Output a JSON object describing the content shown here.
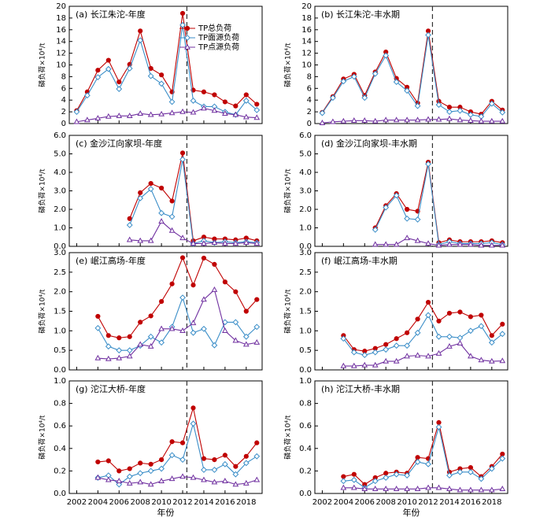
{
  "chart_data": [
    {
      "type": "line",
      "title": "(a) 长江朱沱-年度",
      "ylabel": "磷负荷×10⁴/t",
      "x": [
        2002,
        2003,
        2004,
        2005,
        2006,
        2007,
        2008,
        2009,
        2010,
        2011,
        2012,
        2013,
        2014,
        2015,
        2016,
        2017,
        2018,
        2019
      ],
      "series": [
        {
          "name": "TP总负荷",
          "color": "#c00000",
          "marker": "circle",
          "values": [
            2.2,
            5.4,
            9.1,
            10.8,
            7.1,
            10.1,
            15.8,
            9.4,
            8.3,
            5.4,
            18.8,
            5.7,
            5.4,
            4.9,
            3.7,
            3.0,
            4.9,
            3.3
          ]
        },
        {
          "name": "TP面源负荷",
          "color": "#3b8ec8",
          "marker": "diamond",
          "values": [
            2.0,
            4.8,
            7.9,
            9.3,
            5.9,
            9.4,
            14.2,
            8.1,
            6.8,
            3.7,
            16.8,
            3.9,
            2.9,
            2.9,
            2.0,
            1.5,
            3.9,
            2.3
          ]
        },
        {
          "name": "TP点源负荷",
          "color": "#7030a0",
          "marker": "triangle",
          "values": [
            0.3,
            0.6,
            0.9,
            1.2,
            1.3,
            1.3,
            1.7,
            1.5,
            1.6,
            1.8,
            2.0,
            1.9,
            2.6,
            2.2,
            1.7,
            1.5,
            1.1,
            1.0
          ]
        }
      ],
      "legend": "upper right",
      "divider_x": 2012.4,
      "xlim": [
        2001.3,
        2019.5
      ],
      "xticks": [
        2002,
        2004,
        2006,
        2008,
        2010,
        2012,
        2014,
        2016,
        2018
      ],
      "ylim": [
        0,
        20
      ],
      "yticks": [
        0,
        2,
        4,
        6,
        8,
        10,
        12,
        14,
        16,
        18,
        20
      ]
    },
    {
      "type": "line",
      "title": "(b) 长江朱沱-丰水期",
      "ylabel": "磷负荷×10⁴/t",
      "x": [
        2002,
        2003,
        2004,
        2005,
        2006,
        2007,
        2008,
        2009,
        2010,
        2011,
        2012,
        2013,
        2014,
        2015,
        2016,
        2017,
        2018,
        2019
      ],
      "series": [
        {
          "color": "#c00000",
          "marker": "circle",
          "values": [
            1.9,
            4.6,
            7.6,
            8.4,
            4.8,
            8.8,
            12.2,
            7.7,
            6.2,
            3.5,
            15.8,
            3.8,
            2.8,
            2.8,
            2.0,
            1.6,
            3.8,
            2.3
          ]
        },
        {
          "color": "#3b8ec8",
          "marker": "diamond",
          "values": [
            1.8,
            4.4,
            7.2,
            8.0,
            4.4,
            8.5,
            11.6,
            7.1,
            5.6,
            3.0,
            15.1,
            3.2,
            2.0,
            2.2,
            1.5,
            1.2,
            3.4,
            1.9
          ]
        },
        {
          "color": "#7030a0",
          "marker": "triangle",
          "values": [
            0.1,
            0.3,
            0.4,
            0.5,
            0.5,
            0.4,
            0.6,
            0.6,
            0.6,
            0.6,
            0.7,
            0.7,
            0.8,
            0.6,
            0.5,
            0.4,
            0.4,
            0.4
          ]
        }
      ],
      "divider_x": 2012.4,
      "xlim": [
        2001.3,
        2019.5
      ],
      "xticks": [
        2002,
        2004,
        2006,
        2008,
        2010,
        2012,
        2014,
        2016,
        2018
      ],
      "ylim": [
        0,
        20
      ],
      "yticks": [
        0,
        2,
        4,
        6,
        8,
        10,
        12,
        14,
        16,
        18,
        20
      ]
    },
    {
      "type": "line",
      "title": "(c) 金沙江向家坝-年度",
      "ylabel": "磷负荷×10⁴/t",
      "x": [
        2007,
        2008,
        2009,
        2010,
        2011,
        2012,
        2013,
        2014,
        2015,
        2016,
        2017,
        2018,
        2019
      ],
      "series": [
        {
          "color": "#c00000",
          "marker": "circle",
          "values": [
            1.5,
            2.9,
            3.4,
            3.15,
            2.45,
            5.05,
            0.3,
            0.5,
            0.4,
            0.4,
            0.35,
            0.45,
            0.3
          ]
        },
        {
          "color": "#3b8ec8",
          "marker": "diamond",
          "values": [
            1.15,
            2.6,
            3.1,
            1.8,
            1.6,
            4.7,
            0.15,
            0.3,
            0.2,
            0.25,
            0.2,
            0.25,
            0.2
          ]
        },
        {
          "color": "#7030a0",
          "marker": "triangle",
          "values": [
            0.35,
            0.3,
            0.3,
            1.35,
            0.85,
            0.45,
            0.15,
            0.15,
            0.2,
            0.15,
            0.15,
            0.2,
            0.15
          ]
        }
      ],
      "divider_x": 2012.4,
      "xlim": [
        2001.3,
        2019.5
      ],
      "xticks": [
        2002,
        2004,
        2006,
        2008,
        2010,
        2012,
        2014,
        2016,
        2018
      ],
      "ylim": [
        0,
        6
      ],
      "yticks": [
        {
          "value": 0,
          "label": "0.0"
        },
        {
          "value": 1,
          "label": "1.0"
        },
        {
          "value": 2,
          "label": "2.0"
        },
        {
          "value": 3,
          "label": "3.0"
        },
        {
          "value": 4,
          "label": "4.0"
        },
        {
          "value": 5,
          "label": "5.0"
        },
        {
          "value": 6,
          "label": "6.0"
        }
      ]
    },
    {
      "type": "line",
      "title": "(d) 金沙江向家坝-丰水期",
      "ylabel": "磷负荷×10⁴/t",
      "x": [
        2007,
        2008,
        2009,
        2010,
        2011,
        2012,
        2013,
        2014,
        2015,
        2016,
        2017,
        2018,
        2019
      ],
      "series": [
        {
          "color": "#c00000",
          "marker": "circle",
          "values": [
            1.0,
            2.2,
            2.85,
            2.0,
            1.9,
            4.55,
            0.2,
            0.35,
            0.25,
            0.25,
            0.25,
            0.3,
            0.2
          ]
        },
        {
          "color": "#3b8ec8",
          "marker": "diamond",
          "values": [
            0.9,
            2.1,
            2.75,
            1.5,
            1.45,
            4.45,
            0.1,
            0.25,
            0.15,
            0.15,
            0.15,
            0.2,
            0.1
          ]
        },
        {
          "color": "#7030a0",
          "marker": "triangle",
          "values": [
            0.1,
            0.1,
            0.1,
            0.45,
            0.3,
            0.15,
            0.05,
            0.1,
            0.1,
            0.1,
            0.05,
            0.05,
            0.05
          ]
        }
      ],
      "divider_x": 2012.4,
      "xlim": [
        2001.3,
        2019.5
      ],
      "xticks": [
        2002,
        2004,
        2006,
        2008,
        2010,
        2012,
        2014,
        2016,
        2018
      ],
      "ylim": [
        0,
        6
      ],
      "yticks": [
        {
          "value": 0,
          "label": "0.0"
        },
        {
          "value": 1,
          "label": "1.0"
        },
        {
          "value": 2,
          "label": "2.0"
        },
        {
          "value": 3,
          "label": "3.0"
        },
        {
          "value": 4,
          "label": "4.0"
        },
        {
          "value": 5,
          "label": "5.0"
        },
        {
          "value": 6,
          "label": "6.0"
        }
      ]
    },
    {
      "type": "line",
      "title": "(e) 岷江高场-年度",
      "ylabel": "磷负荷×10⁴/t",
      "x": [
        2004,
        2005,
        2006,
        2007,
        2008,
        2009,
        2010,
        2011,
        2012,
        2013,
        2014,
        2015,
        2016,
        2017,
        2018,
        2019
      ],
      "series": [
        {
          "color": "#c00000",
          "marker": "circle",
          "values": [
            1.37,
            0.88,
            0.82,
            0.85,
            1.22,
            1.38,
            1.75,
            2.2,
            2.87,
            2.17,
            2.86,
            2.7,
            2.25,
            2.0,
            1.5,
            1.8
          ]
        },
        {
          "color": "#3b8ec8",
          "marker": "diamond",
          "values": [
            1.07,
            0.6,
            0.5,
            0.5,
            0.62,
            0.85,
            0.7,
            1.1,
            1.85,
            0.95,
            1.05,
            0.63,
            1.22,
            1.22,
            0.85,
            1.1
          ]
        },
        {
          "color": "#7030a0",
          "marker": "triangle",
          "values": [
            0.3,
            0.28,
            0.3,
            0.35,
            0.65,
            0.6,
            1.05,
            1.05,
            1.0,
            1.2,
            1.8,
            2.05,
            1.0,
            0.75,
            0.65,
            0.7
          ]
        }
      ],
      "divider_x": 2012.4,
      "xlim": [
        2001.3,
        2019.5
      ],
      "xticks": [
        2002,
        2004,
        2006,
        2008,
        2010,
        2012,
        2014,
        2016,
        2018
      ],
      "ylim": [
        0,
        3
      ],
      "yticks": [
        {
          "value": 0,
          "label": "0.0"
        },
        0.5,
        {
          "value": 1,
          "label": "1.0"
        },
        1.5,
        {
          "value": 2,
          "label": "2.0"
        },
        2.5,
        {
          "value": 3,
          "label": "3.0"
        }
      ]
    },
    {
      "type": "line",
      "title": "(f) 岷江高场-丰水期",
      "ylabel": "磷负荷×10⁴/t",
      "x": [
        2004,
        2005,
        2006,
        2007,
        2008,
        2009,
        2010,
        2011,
        2012,
        2013,
        2014,
        2015,
        2016,
        2017,
        2018,
        2019
      ],
      "series": [
        {
          "color": "#c00000",
          "marker": "circle",
          "values": [
            0.88,
            0.52,
            0.48,
            0.55,
            0.65,
            0.8,
            0.95,
            1.3,
            1.73,
            1.25,
            1.45,
            1.48,
            1.36,
            1.4,
            0.88,
            1.17
          ]
        },
        {
          "color": "#3b8ec8",
          "marker": "diamond",
          "values": [
            0.8,
            0.45,
            0.38,
            0.45,
            0.52,
            0.62,
            0.62,
            0.95,
            1.4,
            0.85,
            0.85,
            0.82,
            1.0,
            1.12,
            0.7,
            0.92
          ]
        },
        {
          "color": "#7030a0",
          "marker": "triangle",
          "values": [
            0.1,
            0.1,
            0.12,
            0.12,
            0.22,
            0.22,
            0.35,
            0.37,
            0.35,
            0.42,
            0.6,
            0.68,
            0.35,
            0.25,
            0.22,
            0.23
          ]
        }
      ],
      "divider_x": 2012.4,
      "xlim": [
        2001.3,
        2019.5
      ],
      "xticks": [
        2002,
        2004,
        2006,
        2008,
        2010,
        2012,
        2014,
        2016,
        2018
      ],
      "ylim": [
        0,
        3
      ],
      "yticks": [
        {
          "value": 0,
          "label": "0.0"
        },
        0.5,
        {
          "value": 1,
          "label": "1.0"
        },
        1.5,
        {
          "value": 2,
          "label": "2.0"
        },
        2.5,
        {
          "value": 3,
          "label": "3.0"
        }
      ]
    },
    {
      "type": "line",
      "title": "(g) 沱江大桥-年度",
      "ylabel": "磷负荷×10⁴/t",
      "xlabel": "年份",
      "x": [
        2004,
        2005,
        2006,
        2007,
        2008,
        2009,
        2010,
        2011,
        2012,
        2013,
        2014,
        2015,
        2016,
        2017,
        2018,
        2019
      ],
      "series": [
        {
          "color": "#c00000",
          "marker": "circle",
          "values": [
            0.28,
            0.29,
            0.2,
            0.22,
            0.27,
            0.26,
            0.3,
            0.46,
            0.45,
            0.76,
            0.31,
            0.3,
            0.34,
            0.24,
            0.33,
            0.45
          ]
        },
        {
          "color": "#3b8ec8",
          "marker": "diamond",
          "values": [
            0.14,
            0.16,
            0.08,
            0.15,
            0.18,
            0.2,
            0.22,
            0.34,
            0.3,
            0.62,
            0.21,
            0.21,
            0.26,
            0.17,
            0.27,
            0.33
          ]
        },
        {
          "color": "#7030a0",
          "marker": "triangle",
          "values": [
            0.14,
            0.12,
            0.11,
            0.09,
            0.1,
            0.08,
            0.11,
            0.13,
            0.15,
            0.14,
            0.12,
            0.1,
            0.11,
            0.08,
            0.09,
            0.12
          ]
        }
      ],
      "divider_x": 2012.4,
      "xlim": [
        2001.3,
        2019.5
      ],
      "xticks": [
        2002,
        2004,
        2006,
        2008,
        2010,
        2012,
        2014,
        2016,
        2018
      ],
      "xtick_labels": true,
      "ylim": [
        0,
        1
      ],
      "yticks": [
        {
          "value": 0,
          "label": "0.0"
        },
        0.2,
        0.4,
        0.6,
        0.8,
        {
          "value": 1,
          "label": "1.0"
        }
      ]
    },
    {
      "type": "line",
      "title": "(h) 沱江大桥-丰水期",
      "ylabel": "磷负荷×10⁴/t",
      "xlabel": "年份",
      "x": [
        2004,
        2005,
        2006,
        2007,
        2008,
        2009,
        2010,
        2011,
        2012,
        2013,
        2014,
        2015,
        2016,
        2017,
        2018,
        2019
      ],
      "series": [
        {
          "color": "#c00000",
          "marker": "circle",
          "values": [
            0.15,
            0.17,
            0.08,
            0.14,
            0.18,
            0.19,
            0.18,
            0.32,
            0.31,
            0.63,
            0.19,
            0.22,
            0.23,
            0.15,
            0.24,
            0.35
          ]
        },
        {
          "color": "#3b8ec8",
          "marker": "diamond",
          "values": [
            0.11,
            0.12,
            0.05,
            0.11,
            0.14,
            0.17,
            0.16,
            0.28,
            0.26,
            0.59,
            0.16,
            0.19,
            0.19,
            0.13,
            0.22,
            0.31
          ]
        },
        {
          "color": "#7030a0",
          "marker": "triangle",
          "values": [
            0.05,
            0.05,
            0.04,
            0.04,
            0.04,
            0.04,
            0.04,
            0.04,
            0.05,
            0.05,
            0.04,
            0.03,
            0.03,
            0.03,
            0.03,
            0.04
          ]
        }
      ],
      "divider_x": 2012.4,
      "xlim": [
        2001.3,
        2019.5
      ],
      "xticks": [
        2002,
        2004,
        2006,
        2008,
        2010,
        2012,
        2014,
        2016,
        2018
      ],
      "xtick_labels": true,
      "ylim": [
        0,
        1
      ],
      "yticks": [
        {
          "value": 0,
          "label": "0.0"
        },
        0.2,
        0.4,
        0.6,
        0.8,
        {
          "value": 1,
          "label": "1.0"
        }
      ]
    }
  ]
}
